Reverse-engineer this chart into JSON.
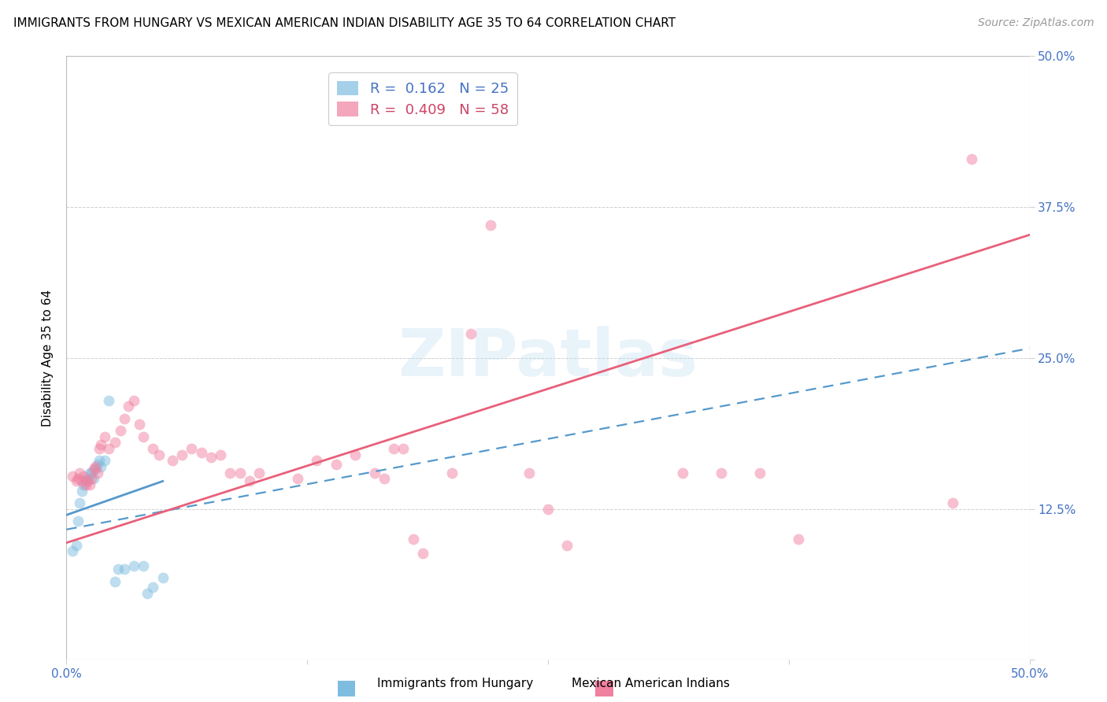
{
  "title": "IMMIGRANTS FROM HUNGARY VS MEXICAN AMERICAN INDIAN DISABILITY AGE 35 TO 64 CORRELATION CHART",
  "source": "Source: ZipAtlas.com",
  "ylabel": "Disability Age 35 to 64",
  "xlim": [
    0.0,
    0.5
  ],
  "ylim": [
    0.0,
    0.5
  ],
  "xticks": [
    0.0,
    0.125,
    0.25,
    0.375,
    0.5
  ],
  "xticklabels": [
    "0.0%",
    "",
    "",
    "",
    "50.0%"
  ],
  "yticks": [
    0.0,
    0.125,
    0.25,
    0.375,
    0.5
  ],
  "yticklabels_right": [
    "",
    "12.5%",
    "25.0%",
    "37.5%",
    "50.0%"
  ],
  "legend_entry1_label": "R =  0.162   N = 25",
  "legend_entry2_label": "R =  0.409   N = 58",
  "legend_label1": "Immigrants from Hungary",
  "legend_label2": "Mexican American Indians",
  "watermark": "ZIPatlas",
  "blue_scatter": [
    [
      0.003,
      0.09
    ],
    [
      0.005,
      0.095
    ],
    [
      0.006,
      0.115
    ],
    [
      0.007,
      0.13
    ],
    [
      0.008,
      0.14
    ],
    [
      0.009,
      0.145
    ],
    [
      0.01,
      0.148
    ],
    [
      0.011,
      0.15
    ],
    [
      0.012,
      0.155
    ],
    [
      0.013,
      0.155
    ],
    [
      0.014,
      0.15
    ],
    [
      0.015,
      0.158
    ],
    [
      0.016,
      0.162
    ],
    [
      0.017,
      0.165
    ],
    [
      0.018,
      0.16
    ],
    [
      0.02,
      0.165
    ],
    [
      0.022,
      0.215
    ],
    [
      0.025,
      0.065
    ],
    [
      0.027,
      0.075
    ],
    [
      0.03,
      0.075
    ],
    [
      0.035,
      0.078
    ],
    [
      0.04,
      0.078
    ],
    [
      0.042,
      0.055
    ],
    [
      0.045,
      0.06
    ],
    [
      0.05,
      0.068
    ]
  ],
  "pink_scatter": [
    [
      0.003,
      0.152
    ],
    [
      0.005,
      0.148
    ],
    [
      0.006,
      0.15
    ],
    [
      0.007,
      0.155
    ],
    [
      0.008,
      0.148
    ],
    [
      0.009,
      0.152
    ],
    [
      0.01,
      0.145
    ],
    [
      0.011,
      0.148
    ],
    [
      0.012,
      0.145
    ],
    [
      0.013,
      0.15
    ],
    [
      0.014,
      0.158
    ],
    [
      0.015,
      0.16
    ],
    [
      0.016,
      0.155
    ],
    [
      0.017,
      0.175
    ],
    [
      0.018,
      0.178
    ],
    [
      0.02,
      0.185
    ],
    [
      0.022,
      0.175
    ],
    [
      0.025,
      0.18
    ],
    [
      0.028,
      0.19
    ],
    [
      0.03,
      0.2
    ],
    [
      0.032,
      0.21
    ],
    [
      0.035,
      0.215
    ],
    [
      0.038,
      0.195
    ],
    [
      0.04,
      0.185
    ],
    [
      0.045,
      0.175
    ],
    [
      0.048,
      0.17
    ],
    [
      0.055,
      0.165
    ],
    [
      0.06,
      0.17
    ],
    [
      0.065,
      0.175
    ],
    [
      0.07,
      0.172
    ],
    [
      0.075,
      0.168
    ],
    [
      0.08,
      0.17
    ],
    [
      0.085,
      0.155
    ],
    [
      0.09,
      0.155
    ],
    [
      0.095,
      0.148
    ],
    [
      0.1,
      0.155
    ],
    [
      0.12,
      0.15
    ],
    [
      0.13,
      0.165
    ],
    [
      0.14,
      0.162
    ],
    [
      0.15,
      0.17
    ],
    [
      0.16,
      0.155
    ],
    [
      0.165,
      0.15
    ],
    [
      0.17,
      0.175
    ],
    [
      0.175,
      0.175
    ],
    [
      0.18,
      0.1
    ],
    [
      0.185,
      0.088
    ],
    [
      0.2,
      0.155
    ],
    [
      0.21,
      0.27
    ],
    [
      0.22,
      0.36
    ],
    [
      0.24,
      0.155
    ],
    [
      0.25,
      0.125
    ],
    [
      0.26,
      0.095
    ],
    [
      0.32,
      0.155
    ],
    [
      0.34,
      0.155
    ],
    [
      0.36,
      0.155
    ],
    [
      0.38,
      0.1
    ],
    [
      0.46,
      0.13
    ],
    [
      0.47,
      0.415
    ]
  ],
  "blue_line_x": [
    0.0,
    0.5
  ],
  "blue_line_y": [
    0.108,
    0.258
  ],
  "pink_line_x": [
    0.0,
    0.5
  ],
  "pink_line_y": [
    0.097,
    0.352
  ],
  "blue_short_line_x": [
    0.0,
    0.05
  ],
  "blue_short_line_y": [
    0.12,
    0.148
  ],
  "blue_scatter_color": "#7fbde0",
  "pink_scatter_color": "#f080a0",
  "blue_line_color": "#5599cc",
  "pink_line_color": "#e8607a",
  "scatter_alpha": 0.5,
  "scatter_size": 100,
  "background_color": "#ffffff",
  "grid_color": "#d0d0d0",
  "title_fontsize": 11,
  "source_fontsize": 10,
  "label_fontsize": 11,
  "tick_fontsize": 11,
  "watermark_color": "#b8d8f0",
  "watermark_fontsize": 60,
  "watermark_alpha": 0.3
}
